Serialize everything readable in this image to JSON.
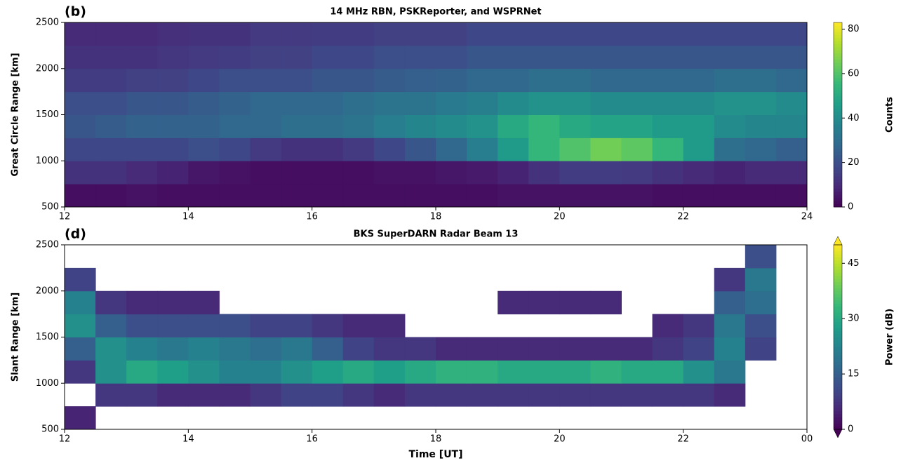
{
  "chart_data": [
    {
      "type": "heatmap",
      "panel_label": "(b)",
      "title": "14 MHz RBN, PSKReporter, and WSPRNet",
      "ylabel": "Great Circle Range [km]",
      "colorbar_label": "Counts",
      "colormap": "viridis",
      "extend": false,
      "xlim": [
        12,
        24
      ],
      "xticks": [
        12,
        14,
        16,
        18,
        20,
        22,
        24
      ],
      "ylim": [
        500,
        2500
      ],
      "yticks": [
        500,
        1000,
        1500,
        2000,
        2500
      ],
      "zlim": [
        0,
        83
      ],
      "zticks": [
        0,
        20,
        40,
        60,
        80
      ],
      "xbins": [
        12,
        12.5,
        13,
        13.5,
        14,
        14.5,
        15,
        15.5,
        16,
        16.5,
        17,
        17.5,
        18,
        18.5,
        19,
        19.5,
        20,
        20.5,
        21,
        21.5,
        22,
        22.5,
        23,
        23.5,
        24
      ],
      "ybins": [
        500,
        750,
        1000,
        1250,
        1500,
        1750,
        2000,
        2250,
        2500
      ],
      "z": [
        [
          3,
          3,
          4,
          3,
          3,
          3,
          3,
          3,
          3,
          3,
          3,
          3,
          3,
          3,
          4,
          4,
          4,
          4,
          4,
          3,
          3,
          3,
          3,
          3
        ],
        [
          12,
          12,
          10,
          8,
          5,
          4,
          3,
          3,
          3,
          3,
          4,
          4,
          5,
          6,
          8,
          12,
          15,
          15,
          14,
          12,
          10,
          8,
          10,
          10
        ],
        [
          18,
          18,
          18,
          18,
          20,
          18,
          14,
          12,
          12,
          14,
          18,
          22,
          28,
          35,
          45,
          55,
          60,
          65,
          62,
          55,
          45,
          30,
          28,
          25
        ],
        [
          22,
          24,
          26,
          26,
          26,
          28,
          28,
          30,
          30,
          32,
          35,
          38,
          40,
          42,
          50,
          55,
          50,
          48,
          48,
          45,
          45,
          40,
          38,
          38
        ],
        [
          20,
          20,
          22,
          22,
          24,
          26,
          28,
          28,
          28,
          30,
          32,
          32,
          34,
          36,
          40,
          42,
          42,
          40,
          40,
          40,
          40,
          42,
          42,
          40
        ],
        [
          15,
          15,
          16,
          16,
          18,
          20,
          20,
          20,
          22,
          22,
          24,
          25,
          26,
          28,
          28,
          30,
          30,
          28,
          28,
          28,
          28,
          30,
          30,
          28
        ],
        [
          12,
          12,
          12,
          13,
          14,
          15,
          16,
          16,
          18,
          18,
          20,
          20,
          20,
          22,
          22,
          22,
          22,
          22,
          22,
          22,
          22,
          22,
          22,
          22
        ],
        [
          10,
          10,
          10,
          11,
          12,
          12,
          14,
          14,
          15,
          15,
          16,
          16,
          16,
          18,
          18,
          18,
          18,
          18,
          18,
          18,
          18,
          18,
          18,
          18
        ]
      ]
    },
    {
      "type": "heatmap",
      "panel_label": "(d)",
      "title": "BKS SuperDARN Radar Beam 13",
      "ylabel": "Slant Range [km]",
      "xlabel": "Time [UT]",
      "colorbar_label": "Power (dB)",
      "colormap": "viridis",
      "extend": true,
      "xlim": [
        12,
        24
      ],
      "xticks": [
        12,
        14,
        16,
        18,
        20,
        22,
        {
          "value": 24,
          "label": "00"
        }
      ],
      "ylim": [
        500,
        2500
      ],
      "yticks": [
        500,
        1000,
        1500,
        2000,
        2500
      ],
      "zlim": [
        0,
        50
      ],
      "zticks": [
        0,
        15,
        30,
        45
      ],
      "xbins": [
        12,
        12.5,
        13,
        13.5,
        14,
        14.5,
        15,
        15.5,
        16,
        16.5,
        17,
        17.5,
        18,
        18.5,
        19,
        19.5,
        20,
        20.5,
        21,
        21.5,
        22,
        22.5,
        23,
        23.5,
        24
      ],
      "ybins": [
        500,
        750,
        1000,
        1250,
        1500,
        1750,
        2000,
        2250,
        2500
      ],
      "z": [
        [
          5,
          null,
          null,
          null,
          null,
          null,
          null,
          null,
          null,
          null,
          null,
          null,
          null,
          null,
          null,
          null,
          null,
          null,
          null,
          null,
          null,
          null,
          null,
          null
        ],
        [
          null,
          8,
          8,
          6,
          6,
          6,
          8,
          10,
          10,
          8,
          6,
          8,
          8,
          8,
          8,
          8,
          8,
          8,
          8,
          8,
          8,
          6,
          null,
          null
        ],
        [
          8,
          25,
          30,
          28,
          25,
          22,
          22,
          25,
          28,
          30,
          28,
          30,
          32,
          32,
          30,
          30,
          30,
          32,
          30,
          30,
          25,
          20,
          null,
          null
        ],
        [
          15,
          25,
          22,
          20,
          22,
          20,
          18,
          20,
          15,
          10,
          8,
          8,
          6,
          6,
          6,
          6,
          6,
          6,
          6,
          8,
          10,
          22,
          10,
          null
        ],
        [
          25,
          15,
          12,
          12,
          12,
          12,
          10,
          10,
          8,
          6,
          6,
          null,
          null,
          null,
          null,
          null,
          null,
          null,
          null,
          6,
          8,
          20,
          12,
          null
        ],
        [
          22,
          8,
          6,
          6,
          6,
          null,
          null,
          null,
          null,
          null,
          null,
          null,
          null,
          null,
          6,
          6,
          6,
          6,
          null,
          null,
          null,
          15,
          18,
          null
        ],
        [
          10,
          null,
          null,
          null,
          null,
          null,
          null,
          null,
          null,
          null,
          null,
          null,
          null,
          null,
          null,
          null,
          null,
          null,
          null,
          null,
          null,
          8,
          20,
          null
        ],
        [
          null,
          null,
          null,
          null,
          null,
          null,
          null,
          null,
          null,
          null,
          null,
          null,
          null,
          null,
          null,
          null,
          null,
          null,
          null,
          null,
          null,
          null,
          12,
          null
        ]
      ]
    }
  ]
}
